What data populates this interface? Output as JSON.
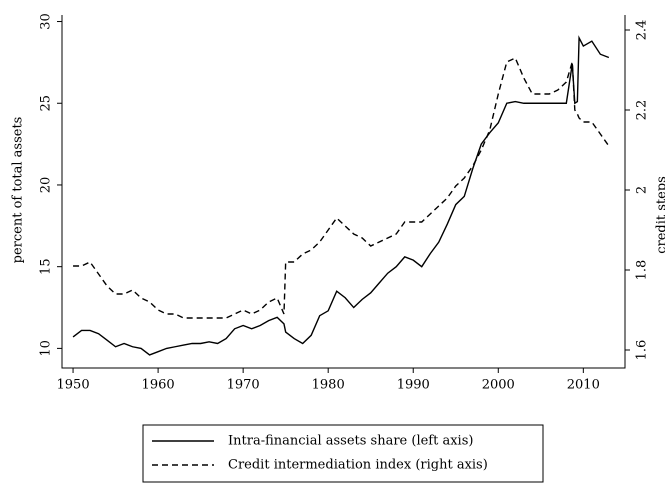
{
  "chart_data": {
    "type": "line",
    "y_label": "percent of total assets",
    "y2_label": "credit steps",
    "x": [
      1950,
      1951,
      1952,
      1953,
      1954,
      1955,
      1956,
      1957,
      1958,
      1959,
      1960,
      1961,
      1962,
      1963,
      1964,
      1965,
      1966,
      1967,
      1968,
      1969,
      1970,
      1971,
      1972,
      1973,
      1974,
      1974.8,
      1975,
      1976,
      1977,
      1978,
      1979,
      1980,
      1981,
      1982,
      1983,
      1984,
      1985,
      1986,
      1987,
      1988,
      1989,
      1990,
      1991,
      1992,
      1993,
      1994,
      1995,
      1996,
      1997,
      1998,
      1999,
      2000,
      2001,
      2002,
      2003,
      2004,
      2005,
      2006,
      2007,
      2008,
      2008.7,
      2009,
      2009.3,
      2009.5,
      2010,
      2011,
      2012,
      2013
    ],
    "series": [
      {
        "name": "Intra-financial assets share (left axis)",
        "color": "#000000",
        "dash": "solid",
        "values": [
          10.7,
          11.1,
          11.1,
          10.9,
          10.5,
          10.1,
          10.3,
          10.1,
          10.0,
          9.6,
          9.8,
          10.0,
          10.1,
          10.2,
          10.3,
          10.3,
          10.4,
          10.3,
          10.6,
          11.2,
          11.4,
          11.2,
          11.4,
          11.7,
          11.9,
          11.5,
          11.0,
          10.6,
          10.3,
          10.8,
          12.0,
          12.3,
          13.5,
          13.1,
          12.5,
          13.0,
          13.4,
          14.0,
          14.6,
          15.0,
          15.6,
          15.4,
          15.0,
          15.8,
          16.5,
          17.6,
          18.8,
          19.3,
          21.0,
          22.5,
          23.2,
          23.8,
          25.0,
          25.1,
          25.0,
          25.0,
          25.0,
          25.0,
          25.0,
          25.0,
          27.4,
          25.0,
          25.1,
          29.0,
          28.5,
          28.8,
          28.0,
          27.8
        ]
      },
      {
        "name": "Credit intermediation index (right axis)",
        "color": "#000000",
        "dash": "dashed",
        "axis": "y2",
        "values": [
          1.81,
          1.81,
          1.82,
          1.79,
          1.76,
          1.74,
          1.74,
          1.75,
          1.73,
          1.72,
          1.7,
          1.69,
          1.69,
          1.68,
          1.68,
          1.68,
          1.68,
          1.68,
          1.68,
          1.69,
          1.7,
          1.69,
          1.7,
          1.72,
          1.73,
          1.69,
          1.82,
          1.82,
          1.84,
          1.85,
          1.87,
          1.9,
          1.93,
          1.91,
          1.89,
          1.88,
          1.86,
          1.87,
          1.88,
          1.89,
          1.92,
          1.92,
          1.92,
          1.94,
          1.96,
          1.98,
          2.01,
          2.03,
          2.06,
          2.1,
          2.15,
          2.24,
          2.32,
          2.33,
          2.28,
          2.24,
          2.24,
          2.24,
          2.25,
          2.27,
          2.32,
          2.2,
          2.19,
          2.18,
          2.17,
          2.17,
          2.14,
          2.11
        ]
      }
    ],
    "xlim": [
      1948.7,
      2014.9
    ],
    "xticks": [
      1950,
      1960,
      1970,
      1980,
      1990,
      2000,
      2010
    ],
    "ylim": [
      8.8,
      30.4
    ],
    "yticks": [
      10,
      15,
      20,
      25,
      30
    ],
    "y2lim": [
      1.555,
      2.4375
    ],
    "y2ticks": [
      1.6,
      1.8,
      2,
      2.2,
      2.4
    ],
    "legend": "bottom"
  }
}
